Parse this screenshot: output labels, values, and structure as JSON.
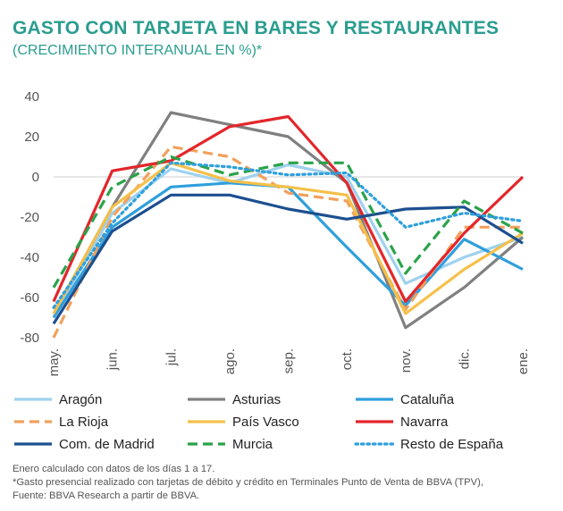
{
  "title": "GASTO CON TARJETA EN BARES Y RESTAURANTES",
  "subtitle": "(CRECIMIENTO INTERANUAL EN %)*",
  "chart_data": {
    "type": "line",
    "categories": [
      "may.",
      "jun.",
      "jul.",
      "ago.",
      "sep.",
      "oct.",
      "nov.",
      "dic.",
      "ene."
    ],
    "ylim": [
      -80,
      40
    ],
    "yticks": [
      "-80",
      "-60",
      "-40",
      "-20",
      "0",
      "20",
      "40"
    ],
    "grid": false,
    "legend_position": "bottom",
    "series": [
      {
        "name": "Aragón",
        "color": "#9fd1ee",
        "dash": "solid",
        "values": [
          -70,
          -18,
          4,
          -3,
          6,
          0,
          -53,
          -40,
          -30
        ]
      },
      {
        "name": "Asturias",
        "color": "#808080",
        "dash": "solid",
        "values": [
          -68,
          -15,
          32,
          26,
          20,
          -3,
          -75,
          -55,
          -30
        ]
      },
      {
        "name": "Cataluña",
        "color": "#2f9fdc",
        "dash": "solid",
        "values": [
          -70,
          -25,
          -5,
          -3,
          -5,
          -35,
          -64,
          -31,
          -46
        ]
      },
      {
        "name": "La Rioja",
        "color": "#f2a05c",
        "dash": "dash",
        "values": [
          -80,
          -20,
          15,
          10,
          -8,
          -12,
          -66,
          -25,
          -25
        ]
      },
      {
        "name": "País Vasco",
        "color": "#f5c04a",
        "dash": "solid",
        "values": [
          -68,
          -15,
          7,
          -2,
          -5,
          -9,
          -68,
          -46,
          -28
        ]
      },
      {
        "name": "Navarra",
        "color": "#e3262a",
        "dash": "solid",
        "values": [
          -62,
          3,
          8,
          25,
          30,
          -3,
          -62,
          -28,
          0
        ]
      },
      {
        "name": "Com. de Madrid",
        "color": "#1c4f8f",
        "dash": "solid",
        "values": [
          -73,
          -27,
          -9,
          -9,
          -16,
          -21,
          -16,
          -15,
          -33
        ]
      },
      {
        "name": "Murcia",
        "color": "#2aa34a",
        "dash": "dash",
        "values": [
          -55,
          -5,
          10,
          1,
          7,
          7,
          -48,
          -12,
          -28
        ]
      },
      {
        "name": "Resto de España",
        "color": "#2f9fdc",
        "dash": "dot",
        "values": [
          -65,
          -23,
          7,
          5,
          1,
          2,
          -25,
          -18,
          -22
        ]
      }
    ]
  },
  "notes": [
    "Enero calculado con datos de los días 1 a 17.",
    "*Gasto presencial  realizado con tarjetas de débito y crédito en Terminales Punto de Venta de BBVA (TPV),",
    "Fuente: BBVA Research a partir de BBVA."
  ]
}
